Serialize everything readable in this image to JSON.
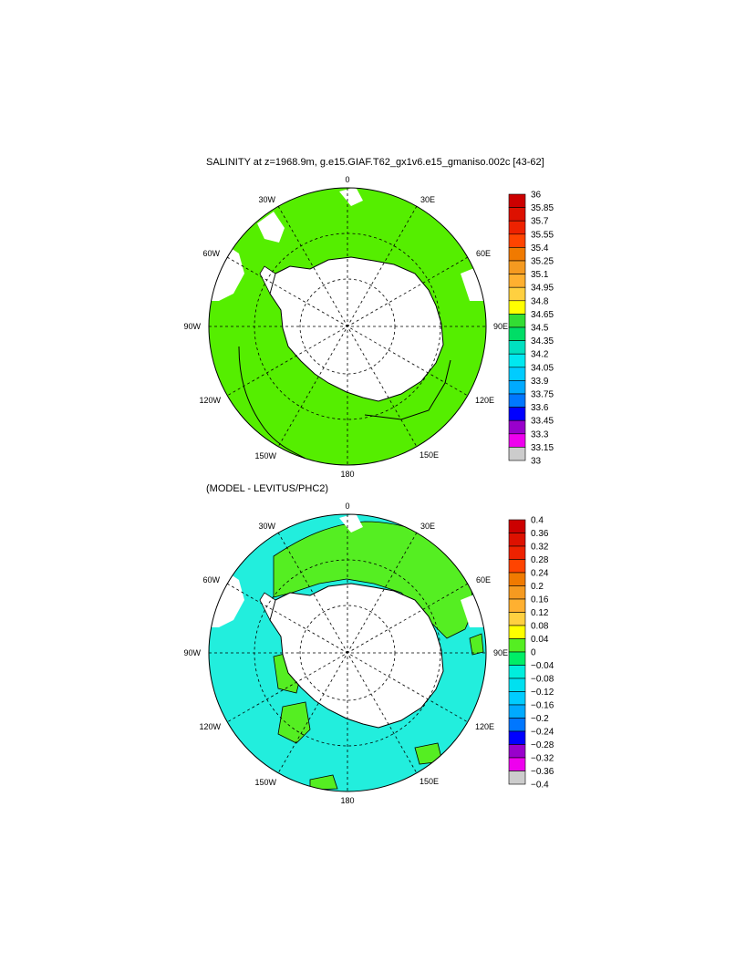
{
  "panel1": {
    "title": "SALINITY at z=1968.9m, g.e15.GIAF.T62_gx1v6.e15_gmaniso.002c [43-62]",
    "lon_labels": {
      "top": "0",
      "tr": "30E",
      "r1": "60E",
      "right": "90E",
      "r2": "120E",
      "br": "150E",
      "bottom": "180",
      "bl": "150W",
      "l2": "120W",
      "left": "90W",
      "l1": "60W",
      "tl": "30W"
    },
    "colorbar": [
      "36",
      "35.85",
      "35.7",
      "35.55",
      "35.4",
      "35.25",
      "35.1",
      "34.95",
      "34.8",
      "34.65",
      "34.5",
      "34.35",
      "34.2",
      "34.05",
      "33.9",
      "33.75",
      "33.6",
      "33.45",
      "33.3",
      "33.15",
      "33"
    ],
    "colors": [
      "#cc0000",
      "#dd1100",
      "#ee2200",
      "#ff4400",
      "#f07a00",
      "#f59a20",
      "#ffb030",
      "#ffd040",
      "#ffff00",
      "#33dd33",
      "#00dd66",
      "#00e0c0",
      "#00e8f0",
      "#00ccff",
      "#00aaff",
      "#0077ff",
      "#0000ff",
      "#9900cc",
      "#ee00ee",
      "#cccccc",
      "#666666"
    ]
  },
  "panel2": {
    "title": "(MODEL - LEVITUS/PHC2)",
    "lon_labels": {
      "top": "0",
      "tr": "30E",
      "r1": "60E",
      "right": "90E",
      "r2": "120E",
      "br": "150E",
      "bottom": "180",
      "bl": "150W",
      "l2": "120W",
      "left": "90W",
      "l1": "60W",
      "tl": "30W"
    },
    "colorbar": [
      "0.4",
      "0.36",
      "0.32",
      "0.28",
      "0.24",
      "0.2",
      "0.16",
      "0.12",
      "0.08",
      "0.04",
      "0",
      "−0.04",
      "−0.08",
      "−0.12",
      "−0.16",
      "−0.2",
      "−0.24",
      "−0.28",
      "−0.32",
      "−0.36",
      "−0.4"
    ],
    "colors": [
      "#cc0000",
      "#dd1100",
      "#ee2200",
      "#ff4400",
      "#f07a00",
      "#f59a20",
      "#ffb030",
      "#ffd040",
      "#ffff00",
      "#55ee22",
      "#00ee66",
      "#00eedd",
      "#00e0f0",
      "#00ccff",
      "#00aaff",
      "#0077ff",
      "#0000ff",
      "#9900cc",
      "#ee00ee",
      "#cccccc",
      "#666666"
    ]
  },
  "style": {
    "ocean_panel1": "#55ee00",
    "ocean_panel2_main": "#22eedd",
    "ocean_panel2_pos": "#55ee22",
    "land": "#ffffff"
  }
}
